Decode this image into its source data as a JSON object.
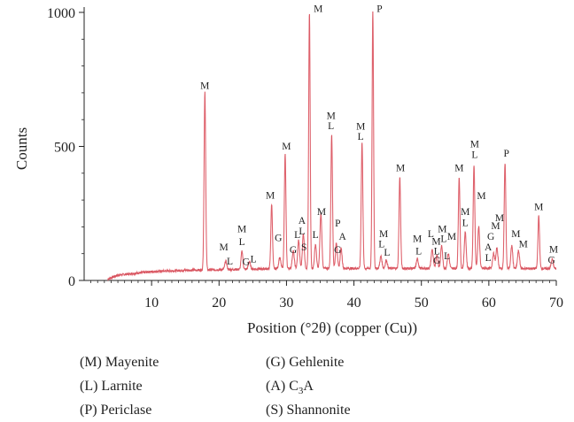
{
  "chart_data": {
    "type": "line",
    "xlabel": "Position (°2θ) (copper (Cu))",
    "ylabel": "Counts",
    "xlim": [
      0,
      70
    ],
    "ylim": [
      0,
      1000
    ],
    "x_ticks": [
      10,
      20,
      30,
      40,
      50,
      60,
      70
    ],
    "y_ticks": [
      0,
      500,
      1000
    ],
    "line_color": "#e8707a",
    "grid": false,
    "baseline": [
      [
        3.5,
        5
      ],
      [
        5,
        20
      ],
      [
        10,
        33
      ],
      [
        15,
        38
      ],
      [
        20,
        40
      ],
      [
        30,
        45
      ],
      [
        40,
        45
      ],
      [
        50,
        45
      ],
      [
        60,
        45
      ],
      [
        70,
        44
      ]
    ],
    "peaks": [
      {
        "x": 17.9,
        "y": 700,
        "w": 0.12
      },
      {
        "x": 21.0,
        "y": 72,
        "w": 0.15
      },
      {
        "x": 23.4,
        "y": 110,
        "w": 0.13
      },
      {
        "x": 24.5,
        "y": 70,
        "w": 0.15
      },
      {
        "x": 27.8,
        "y": 285,
        "w": 0.12
      },
      {
        "x": 29.0,
        "y": 85,
        "w": 0.15
      },
      {
        "x": 29.8,
        "y": 470,
        "w": 0.12
      },
      {
        "x": 31.0,
        "y": 110,
        "w": 0.15
      },
      {
        "x": 31.8,
        "y": 150,
        "w": 0.14
      },
      {
        "x": 32.5,
        "y": 175,
        "w": 0.14
      },
      {
        "x": 33.4,
        "y": 1000,
        "w": 0.11
      },
      {
        "x": 34.3,
        "y": 135,
        "w": 0.14
      },
      {
        "x": 35.1,
        "y": 250,
        "w": 0.14
      },
      {
        "x": 36.7,
        "y": 545,
        "w": 0.12
      },
      {
        "x": 37.4,
        "y": 140,
        "w": 0.14
      },
      {
        "x": 38.1,
        "y": 120,
        "w": 0.14
      },
      {
        "x": 41.2,
        "y": 515,
        "w": 0.12
      },
      {
        "x": 42.8,
        "y": 1000,
        "w": 0.11
      },
      {
        "x": 44.0,
        "y": 90,
        "w": 0.15
      },
      {
        "x": 44.8,
        "y": 75,
        "w": 0.15
      },
      {
        "x": 46.8,
        "y": 385,
        "w": 0.12
      },
      {
        "x": 49.4,
        "y": 80,
        "w": 0.15
      },
      {
        "x": 51.6,
        "y": 115,
        "w": 0.15
      },
      {
        "x": 52.3,
        "y": 95,
        "w": 0.15
      },
      {
        "x": 53.0,
        "y": 130,
        "w": 0.14
      },
      {
        "x": 54.0,
        "y": 100,
        "w": 0.15
      },
      {
        "x": 55.6,
        "y": 385,
        "w": 0.12
      },
      {
        "x": 56.5,
        "y": 180,
        "w": 0.14
      },
      {
        "x": 57.8,
        "y": 430,
        "w": 0.12
      },
      {
        "x": 58.5,
        "y": 200,
        "w": 0.14
      },
      {
        "x": 60.7,
        "y": 100,
        "w": 0.15
      },
      {
        "x": 61.2,
        "y": 120,
        "w": 0.15
      },
      {
        "x": 62.4,
        "y": 440,
        "w": 0.12
      },
      {
        "x": 63.4,
        "y": 130,
        "w": 0.14
      },
      {
        "x": 64.4,
        "y": 110,
        "w": 0.15
      },
      {
        "x": 67.4,
        "y": 240,
        "w": 0.12
      },
      {
        "x": 69.4,
        "y": 80,
        "w": 0.15
      }
    ],
    "annotations": [
      {
        "text": "M",
        "x": 17.9,
        "y": 715
      },
      {
        "text": "M",
        "x": 20.7,
        "y": 112
      },
      {
        "text": "L",
        "x": 21.6,
        "y": 60
      },
      {
        "text": "M",
        "x": 23.4,
        "y": 180
      },
      {
        "text": "L",
        "x": 23.4,
        "y": 132
      },
      {
        "text": "G",
        "x": 24.0,
        "y": 57
      },
      {
        "text": "L",
        "x": 25.1,
        "y": 67
      },
      {
        "text": "M",
        "x": 27.6,
        "y": 305
      },
      {
        "text": "G",
        "x": 28.8,
        "y": 147
      },
      {
        "text": "M",
        "x": 30.0,
        "y": 488
      },
      {
        "text": "G",
        "x": 31.0,
        "y": 102
      },
      {
        "text": "L",
        "x": 31.6,
        "y": 158
      },
      {
        "text": "A",
        "x": 32.3,
        "y": 211
      },
      {
        "text": "L",
        "x": 32.3,
        "y": 172
      },
      {
        "text": "S",
        "x": 32.6,
        "y": 113
      },
      {
        "text": "M",
        "x": 34.7,
        "y": 1002
      },
      {
        "text": "L",
        "x": 34.3,
        "y": 158
      },
      {
        "text": "M",
        "x": 35.2,
        "y": 245
      },
      {
        "text": "M",
        "x": 36.6,
        "y": 603
      },
      {
        "text": "L",
        "x": 36.6,
        "y": 565
      },
      {
        "text": "P",
        "x": 37.6,
        "y": 202
      },
      {
        "text": "G",
        "x": 37.6,
        "y": 102
      },
      {
        "text": "A",
        "x": 38.3,
        "y": 152
      },
      {
        "text": "M",
        "x": 41.0,
        "y": 563
      },
      {
        "text": "L",
        "x": 41.0,
        "y": 524
      },
      {
        "text": "P",
        "x": 43.8,
        "y": 1002
      },
      {
        "text": "M",
        "x": 44.4,
        "y": 162
      },
      {
        "text": "L",
        "x": 44.1,
        "y": 124
      },
      {
        "text": "L",
        "x": 44.9,
        "y": 92
      },
      {
        "text": "M",
        "x": 46.9,
        "y": 407
      },
      {
        "text": "M",
        "x": 49.4,
        "y": 144
      },
      {
        "text": "L",
        "x": 49.6,
        "y": 97
      },
      {
        "text": "L",
        "x": 51.4,
        "y": 162
      },
      {
        "text": "M",
        "x": 52.2,
        "y": 134
      },
      {
        "text": "L",
        "x": 52.3,
        "y": 98
      },
      {
        "text": "G",
        "x": 52.3,
        "y": 63
      },
      {
        "text": "M",
        "x": 53.1,
        "y": 180
      },
      {
        "text": "L",
        "x": 53.3,
        "y": 143
      },
      {
        "text": "L",
        "x": 53.8,
        "y": 80
      },
      {
        "text": "M",
        "x": 54.5,
        "y": 152
      },
      {
        "text": "M",
        "x": 55.6,
        "y": 407
      },
      {
        "text": "M",
        "x": 56.5,
        "y": 244
      },
      {
        "text": "L",
        "x": 56.5,
        "y": 203
      },
      {
        "text": "M",
        "x": 57.9,
        "y": 497
      },
      {
        "text": "L",
        "x": 57.9,
        "y": 457
      },
      {
        "text": "M",
        "x": 58.9,
        "y": 303
      },
      {
        "text": "A",
        "x": 59.9,
        "y": 113
      },
      {
        "text": "L",
        "x": 59.9,
        "y": 73
      },
      {
        "text": "G",
        "x": 60.3,
        "y": 152
      },
      {
        "text": "M",
        "x": 61.0,
        "y": 192
      },
      {
        "text": "M",
        "x": 61.6,
        "y": 221
      },
      {
        "text": "P",
        "x": 62.6,
        "y": 462
      },
      {
        "text": "M",
        "x": 64.0,
        "y": 162
      },
      {
        "text": "M",
        "x": 65.1,
        "y": 123
      },
      {
        "text": "M",
        "x": 67.4,
        "y": 263
      },
      {
        "text": "M",
        "x": 69.6,
        "y": 104
      },
      {
        "text": "G",
        "x": 69.3,
        "y": 64
      }
    ]
  },
  "legend": [
    {
      "key": "(M) Mayenite",
      "sub": ""
    },
    {
      "key": "(L) Larnite",
      "sub": ""
    },
    {
      "key": "(P) Periclase",
      "sub": ""
    },
    {
      "key": "(G) Gehlenite",
      "sub": ""
    },
    {
      "key": "(A) C",
      "sub": "3",
      "tail": "A"
    },
    {
      "key": "(S) Shannonite",
      "sub": ""
    }
  ]
}
